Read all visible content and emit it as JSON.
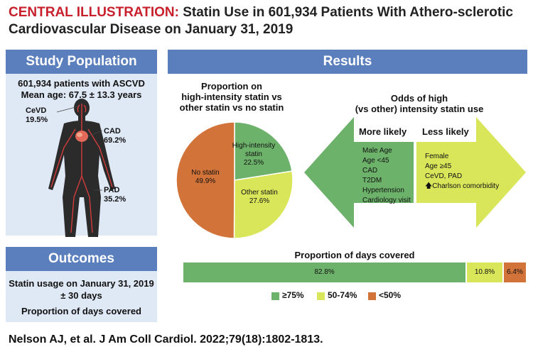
{
  "header": {
    "lead": "CENTRAL ILLUSTRATION:",
    "title": " Statin Use in 601,934 Patients With Athero-sclerotic Cardiovascular Disease on January 31, 2019"
  },
  "study_population": {
    "heading": "Study Population",
    "line1": "601,934  patients with ASCVD",
    "line2": "Mean age: 67.5 ± 13.3 years",
    "labels": {
      "cevd": "CeVD",
      "cevd_pct": "19.5%",
      "cad": "CAD",
      "cad_pct": "69.2%",
      "pad": "PAD",
      "pad_pct": "35.2%"
    }
  },
  "outcomes": {
    "heading": "Outcomes",
    "line1": "Statin usage on January 31, 2019",
    "line2": "± 30 days",
    "line3": "Proportion of days covered"
  },
  "results": {
    "heading": "Results",
    "pie_title": [
      "Proportion on",
      "high-intensity statin vs",
      "other statin vs no statin"
    ],
    "odds_title": [
      "Odds of high",
      "(vs other) intensity statin use"
    ],
    "more_likely": {
      "label": "More likely",
      "items": [
        "Male Age",
        "Age <45",
        "CAD",
        "T2DM",
        "Hypertension",
        "Cardiology visit"
      ]
    },
    "less_likely": {
      "label": "Less likely",
      "items": [
        "Female",
        "Age ≥45",
        "CeVD, PAD",
        "Charlson comorbidity"
      ],
      "up_arrow": "🡅"
    },
    "pdc_title": "Proportion of days covered",
    "legend": [
      "≥75%",
      "50-74%",
      "<50%"
    ]
  },
  "colors": {
    "green": "#6db26a",
    "lime": "#d9e65a",
    "orange": "#d27339",
    "blue": "#5b7fbd",
    "panel": "#dfe8f5",
    "red": "#c8202c"
  },
  "chart_data": [
    {
      "type": "pie",
      "labels": [
        "High-intensity statin",
        "Other statin",
        "No statin"
      ],
      "values": [
        22.5,
        27.6,
        49.9
      ],
      "value_labels": [
        "22.5%",
        "27.6%",
        "49.9%"
      ]
    },
    {
      "type": "bar",
      "orientation": "horizontal-stacked",
      "categories": [
        "≥75%",
        "50-74%",
        "<50%"
      ],
      "values": [
        82.8,
        10.8,
        6.4
      ],
      "value_labels": [
        "82.8%",
        "10.8%",
        "6.4%"
      ]
    }
  ]
}
